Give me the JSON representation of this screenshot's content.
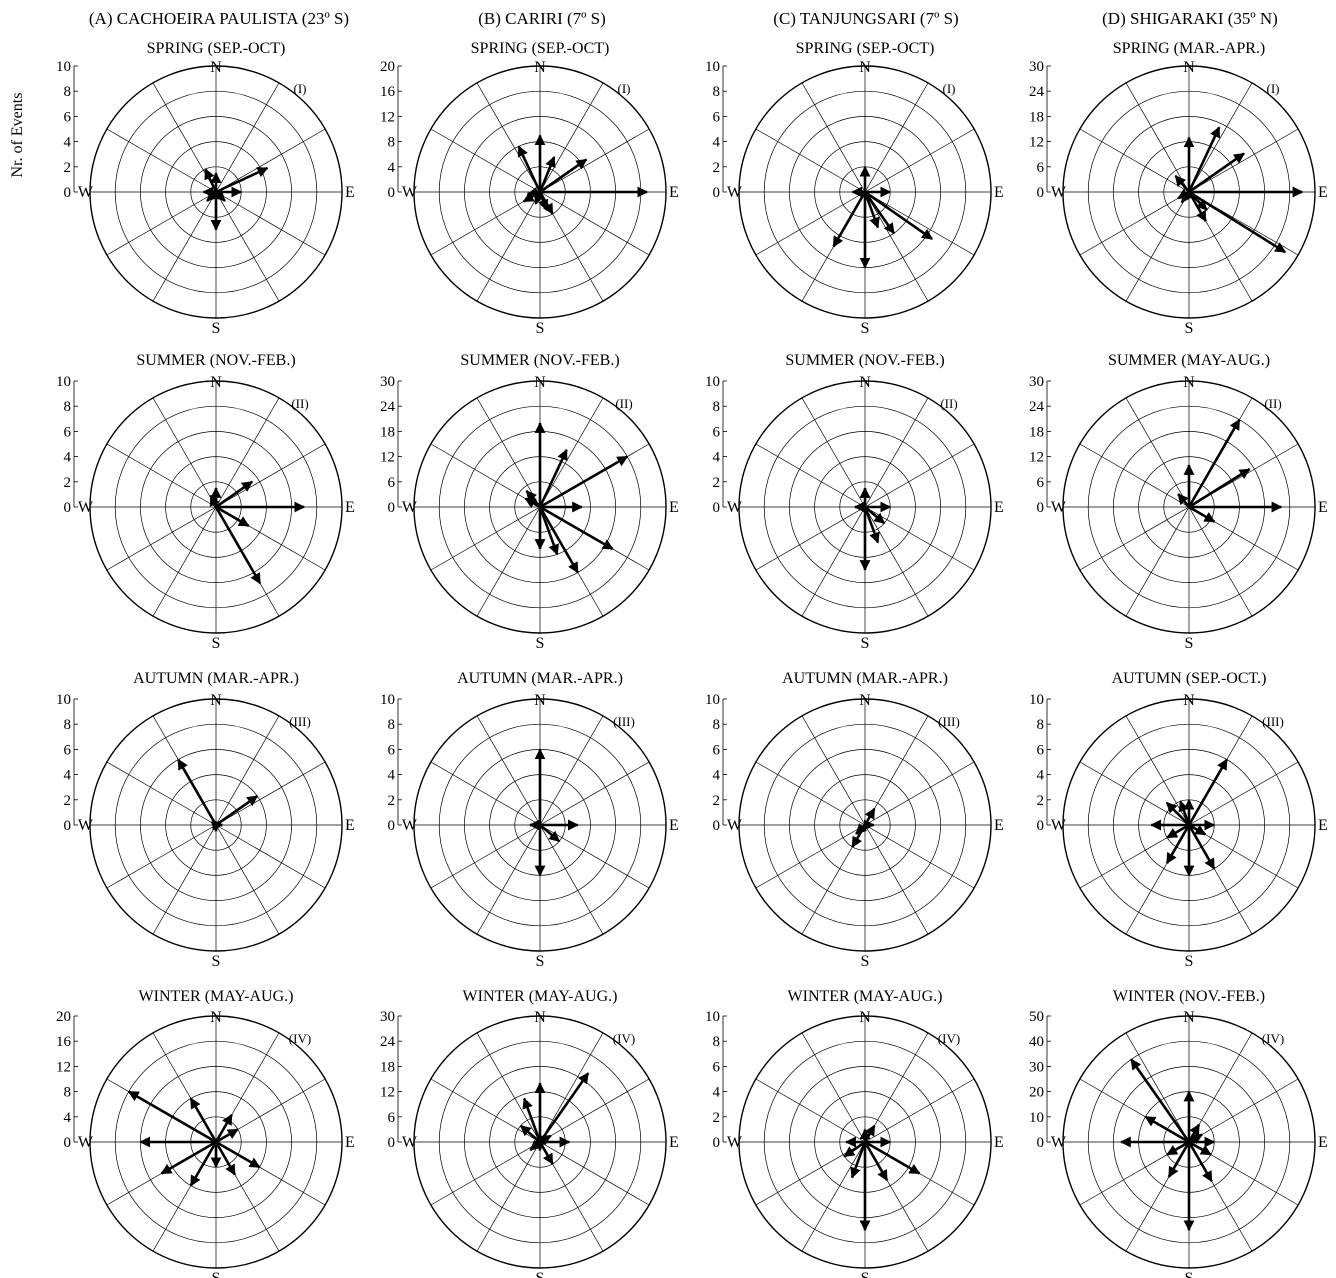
{
  "figure": {
    "ylabel": "Nr. of Events",
    "columns": [
      {
        "title": "(A) CACHOEIRA PAULISTA (23º S)"
      },
      {
        "title": "(B) CARIRI (7º S)"
      },
      {
        "title": "(C) TANJUNGSARI (7º S)"
      },
      {
        "title": "(D) SHIGARAKI (35º N)"
      }
    ]
  },
  "chart_data": [
    {
      "type": "polar-vector",
      "station": "A",
      "panel": "(I)",
      "title": "SPRING (SEP.-OCT)",
      "rmax": 10,
      "ticks": [
        "0",
        "2",
        "4",
        "6",
        "8",
        "10"
      ],
      "directions": [
        "N",
        "E",
        "S",
        "W"
      ],
      "vectors": [
        {
          "azimuth": 65,
          "value": 4.5
        },
        {
          "azimuth": 90,
          "value": 2
        },
        {
          "azimuth": 180,
          "value": 3
        },
        {
          "azimuth": 335,
          "value": 2
        },
        {
          "azimuth": 0,
          "value": 1.5
        },
        {
          "azimuth": 225,
          "value": 1
        },
        {
          "azimuth": 135,
          "value": 1
        },
        {
          "azimuth": 270,
          "value": 1
        }
      ]
    },
    {
      "type": "polar-vector",
      "station": "B",
      "panel": "(I)",
      "title": "SPRING (SEP.-OCT)",
      "rmax": 20,
      "ticks": [
        "0",
        "4",
        "8",
        "12",
        "16",
        "20"
      ],
      "directions": [
        "N",
        "E",
        "S",
        "W"
      ],
      "vectors": [
        {
          "azimuth": 90,
          "value": 17
        },
        {
          "azimuth": 0,
          "value": 9
        },
        {
          "azimuth": 335,
          "value": 8
        },
        {
          "azimuth": 22,
          "value": 6
        },
        {
          "azimuth": 55,
          "value": 9
        },
        {
          "azimuth": 150,
          "value": 4
        },
        {
          "azimuth": 160,
          "value": 3
        },
        {
          "azimuth": 240,
          "value": 3
        },
        {
          "azimuth": 260,
          "value": 2
        },
        {
          "azimuth": 200,
          "value": 2
        }
      ]
    },
    {
      "type": "polar-vector",
      "station": "C",
      "panel": "(I)",
      "title": "SPRING (SEP.-OCT)",
      "rmax": 10,
      "ticks": [
        "0",
        "2",
        "4",
        "6",
        "8",
        "10"
      ],
      "directions": [
        "N",
        "E",
        "S",
        "W"
      ],
      "vectors": [
        {
          "azimuth": 180,
          "value": 6
        },
        {
          "azimuth": 210,
          "value": 5
        },
        {
          "azimuth": 125,
          "value": 6.5
        },
        {
          "azimuth": 145,
          "value": 4
        },
        {
          "azimuth": 0,
          "value": 2
        },
        {
          "azimuth": 90,
          "value": 2
        },
        {
          "azimuth": 270,
          "value": 1
        },
        {
          "azimuth": 160,
          "value": 3
        }
      ]
    },
    {
      "type": "polar-vector",
      "station": "D",
      "panel": "(I)",
      "title": "SPRING (MAR.-APR.)",
      "rmax": 30,
      "ticks": [
        "0",
        "6",
        "12",
        "18",
        "24",
        "30"
      ],
      "directions": [
        "N",
        "E",
        "S",
        "W"
      ],
      "vectors": [
        {
          "azimuth": 90,
          "value": 27
        },
        {
          "azimuth": 122,
          "value": 27
        },
        {
          "azimuth": 25,
          "value": 17
        },
        {
          "azimuth": 55,
          "value": 16
        },
        {
          "azimuth": 0,
          "value": 13
        },
        {
          "azimuth": 150,
          "value": 8
        },
        {
          "azimuth": 135,
          "value": 6
        },
        {
          "azimuth": 320,
          "value": 5
        },
        {
          "azimuth": 240,
          "value": 3
        },
        {
          "azimuth": 215,
          "value": 3
        }
      ]
    },
    {
      "type": "polar-vector",
      "station": "A",
      "panel": "(II)",
      "title": "SUMMER (NOV.-FEB.)",
      "rmax": 10,
      "ticks": [
        "0",
        "2",
        "4",
        "6",
        "8",
        "10"
      ],
      "directions": [
        "N",
        "E",
        "S",
        "W"
      ],
      "vectors": [
        {
          "azimuth": 90,
          "value": 7
        },
        {
          "azimuth": 150,
          "value": 7
        },
        {
          "azimuth": 55,
          "value": 3.5
        },
        {
          "azimuth": 120,
          "value": 3
        },
        {
          "azimuth": 0,
          "value": 1.5
        },
        {
          "azimuth": 335,
          "value": 1
        }
      ]
    },
    {
      "type": "polar-vector",
      "station": "B",
      "panel": "(II)",
      "title": "SUMMER (NOV.-FEB.)",
      "rmax": 30,
      "ticks": [
        "0",
        "6",
        "12",
        "18",
        "24",
        "30"
      ],
      "directions": [
        "N",
        "E",
        "S",
        "W"
      ],
      "vectors": [
        {
          "azimuth": 0,
          "value": 20
        },
        {
          "azimuth": 25,
          "value": 15
        },
        {
          "azimuth": 60,
          "value": 24
        },
        {
          "azimuth": 120,
          "value": 20
        },
        {
          "azimuth": 150,
          "value": 18
        },
        {
          "azimuth": 180,
          "value": 10
        },
        {
          "azimuth": 90,
          "value": 10
        },
        {
          "azimuth": 160,
          "value": 12
        },
        {
          "azimuth": 320,
          "value": 5
        },
        {
          "azimuth": 300,
          "value": 4
        }
      ]
    },
    {
      "type": "polar-vector",
      "station": "C",
      "panel": "(II)",
      "title": "SUMMER (NOV.-FEB.)",
      "rmax": 10,
      "ticks": [
        "0",
        "2",
        "4",
        "6",
        "8",
        "10"
      ],
      "directions": [
        "N",
        "E",
        "S",
        "W"
      ],
      "vectors": [
        {
          "azimuth": 180,
          "value": 5
        },
        {
          "azimuth": 160,
          "value": 3
        },
        {
          "azimuth": 90,
          "value": 2
        },
        {
          "azimuth": 0,
          "value": 1.5
        },
        {
          "azimuth": 130,
          "value": 2
        },
        {
          "azimuth": 270,
          "value": 0.8
        }
      ]
    },
    {
      "type": "polar-vector",
      "station": "D",
      "panel": "(II)",
      "title": "SUMMER (MAY-AUG.)",
      "rmax": 30,
      "ticks": [
        "0",
        "6",
        "12",
        "18",
        "24",
        "30"
      ],
      "directions": [
        "N",
        "E",
        "S",
        "W"
      ],
      "vectors": [
        {
          "azimuth": 30,
          "value": 24
        },
        {
          "azimuth": 58,
          "value": 17
        },
        {
          "azimuth": 90,
          "value": 22
        },
        {
          "azimuth": 0,
          "value": 10
        },
        {
          "azimuth": 120,
          "value": 7
        },
        {
          "azimuth": 320,
          "value": 4
        }
      ]
    },
    {
      "type": "polar-vector",
      "station": "A",
      "panel": "(III)",
      "title": "AUTUMN (MAR.-APR.)",
      "rmax": 10,
      "ticks": [
        "0",
        "2",
        "4",
        "6",
        "8",
        "10"
      ],
      "directions": [
        "N",
        "E",
        "S",
        "W"
      ],
      "vectors": [
        {
          "azimuth": 330,
          "value": 6
        },
        {
          "azimuth": 55,
          "value": 4
        },
        {
          "azimuth": 90,
          "value": 0.5
        },
        {
          "azimuth": 180,
          "value": 0.5
        }
      ]
    },
    {
      "type": "polar-vector",
      "station": "B",
      "panel": "(III)",
      "title": "AUTUMN (MAR.-APR.)",
      "rmax": 10,
      "ticks": [
        "0",
        "2",
        "4",
        "6",
        "8",
        "10"
      ],
      "directions": [
        "N",
        "E",
        "S",
        "W"
      ],
      "vectors": [
        {
          "azimuth": 0,
          "value": 6
        },
        {
          "azimuth": 180,
          "value": 4
        },
        {
          "azimuth": 90,
          "value": 3
        },
        {
          "azimuth": 130,
          "value": 2
        },
        {
          "azimuth": 270,
          "value": 0.8
        }
      ]
    },
    {
      "type": "polar-vector",
      "station": "C",
      "panel": "(III)",
      "title": "AUTUMN (MAR.-APR.)",
      "rmax": 10,
      "ticks": [
        "0",
        "2",
        "4",
        "6",
        "8",
        "10"
      ],
      "directions": [
        "N",
        "E",
        "S",
        "W"
      ],
      "vectors": [
        {
          "azimuth": 30,
          "value": 1.5
        },
        {
          "azimuth": 210,
          "value": 2
        },
        {
          "azimuth": 225,
          "value": 1
        },
        {
          "azimuth": 90,
          "value": 0.7
        }
      ]
    },
    {
      "type": "polar-vector",
      "station": "D",
      "panel": "(III)",
      "title": "AUTUMN (SEP.-OCT.)",
      "rmax": 10,
      "ticks": [
        "0",
        "2",
        "4",
        "6",
        "8",
        "10"
      ],
      "directions": [
        "N",
        "E",
        "S",
        "W"
      ],
      "vectors": [
        {
          "azimuth": 30,
          "value": 6
        },
        {
          "azimuth": 180,
          "value": 4
        },
        {
          "azimuth": 150,
          "value": 4
        },
        {
          "azimuth": 210,
          "value": 3.5
        },
        {
          "azimuth": 270,
          "value": 3
        },
        {
          "azimuth": 315,
          "value": 2.5
        },
        {
          "azimuth": 340,
          "value": 2
        },
        {
          "azimuth": 0,
          "value": 2
        },
        {
          "azimuth": 90,
          "value": 2
        },
        {
          "azimuth": 240,
          "value": 2
        },
        {
          "azimuth": 120,
          "value": 1.5
        }
      ]
    },
    {
      "type": "polar-vector",
      "station": "A",
      "panel": "(IV)",
      "title": "WINTER (MAY-AUG.)",
      "rmax": 20,
      "ticks": [
        "0",
        "4",
        "8",
        "12",
        "16",
        "20"
      ],
      "directions": [
        "N",
        "E",
        "S",
        "W"
      ],
      "vectors": [
        {
          "azimuth": 300,
          "value": 16
        },
        {
          "azimuth": 270,
          "value": 12
        },
        {
          "azimuth": 240,
          "value": 10
        },
        {
          "azimuth": 210,
          "value": 8
        },
        {
          "azimuth": 330,
          "value": 8
        },
        {
          "azimuth": 120,
          "value": 8
        },
        {
          "azimuth": 150,
          "value": 6
        },
        {
          "azimuth": 30,
          "value": 5
        },
        {
          "azimuth": 60,
          "value": 4
        },
        {
          "azimuth": 180,
          "value": 4
        }
      ]
    },
    {
      "type": "polar-vector",
      "station": "B",
      "panel": "(IV)",
      "title": "WINTER (MAY-AUG.)",
      "rmax": 30,
      "ticks": [
        "0",
        "6",
        "12",
        "18",
        "24",
        "30"
      ],
      "directions": [
        "N",
        "E",
        "S",
        "W"
      ],
      "vectors": [
        {
          "azimuth": 35,
          "value": 20
        },
        {
          "azimuth": 0,
          "value": 14
        },
        {
          "azimuth": 340,
          "value": 11
        },
        {
          "azimuth": 310,
          "value": 6
        },
        {
          "azimuth": 90,
          "value": 7
        },
        {
          "azimuth": 150,
          "value": 6
        },
        {
          "azimuth": 230,
          "value": 3
        },
        {
          "azimuth": 60,
          "value": 3
        },
        {
          "azimuth": 180,
          "value": 2
        }
      ]
    },
    {
      "type": "polar-vector",
      "station": "C",
      "panel": "(IV)",
      "title": "WINTER (MAY-AUG.)",
      "rmax": 10,
      "ticks": [
        "0",
        "2",
        "4",
        "6",
        "8",
        "10"
      ],
      "directions": [
        "N",
        "E",
        "S",
        "W"
      ],
      "vectors": [
        {
          "azimuth": 180,
          "value": 7
        },
        {
          "azimuth": 120,
          "value": 5
        },
        {
          "azimuth": 150,
          "value": 3.5
        },
        {
          "azimuth": 200,
          "value": 3
        },
        {
          "azimuth": 235,
          "value": 2
        },
        {
          "azimuth": 270,
          "value": 1.5
        },
        {
          "azimuth": 90,
          "value": 2
        },
        {
          "azimuth": 30,
          "value": 1.5
        },
        {
          "azimuth": 0,
          "value": 1
        }
      ]
    },
    {
      "type": "polar-vector",
      "station": "D",
      "panel": "(IV)",
      "title": "WINTER (NOV.-FEB.)",
      "rmax": 50,
      "ticks": [
        "0",
        "10",
        "20",
        "30",
        "40",
        "50"
      ],
      "directions": [
        "N",
        "E",
        "S",
        "W"
      ],
      "vectors": [
        {
          "azimuth": 325,
          "value": 40
        },
        {
          "azimuth": 180,
          "value": 35
        },
        {
          "azimuth": 270,
          "value": 27
        },
        {
          "azimuth": 300,
          "value": 20
        },
        {
          "azimuth": 0,
          "value": 20
        },
        {
          "azimuth": 150,
          "value": 18
        },
        {
          "azimuth": 210,
          "value": 16
        },
        {
          "azimuth": 240,
          "value": 10
        },
        {
          "azimuth": 90,
          "value": 10
        },
        {
          "azimuth": 120,
          "value": 10
        },
        {
          "azimuth": 30,
          "value": 8
        },
        {
          "azimuth": 60,
          "value": 6
        }
      ]
    }
  ]
}
